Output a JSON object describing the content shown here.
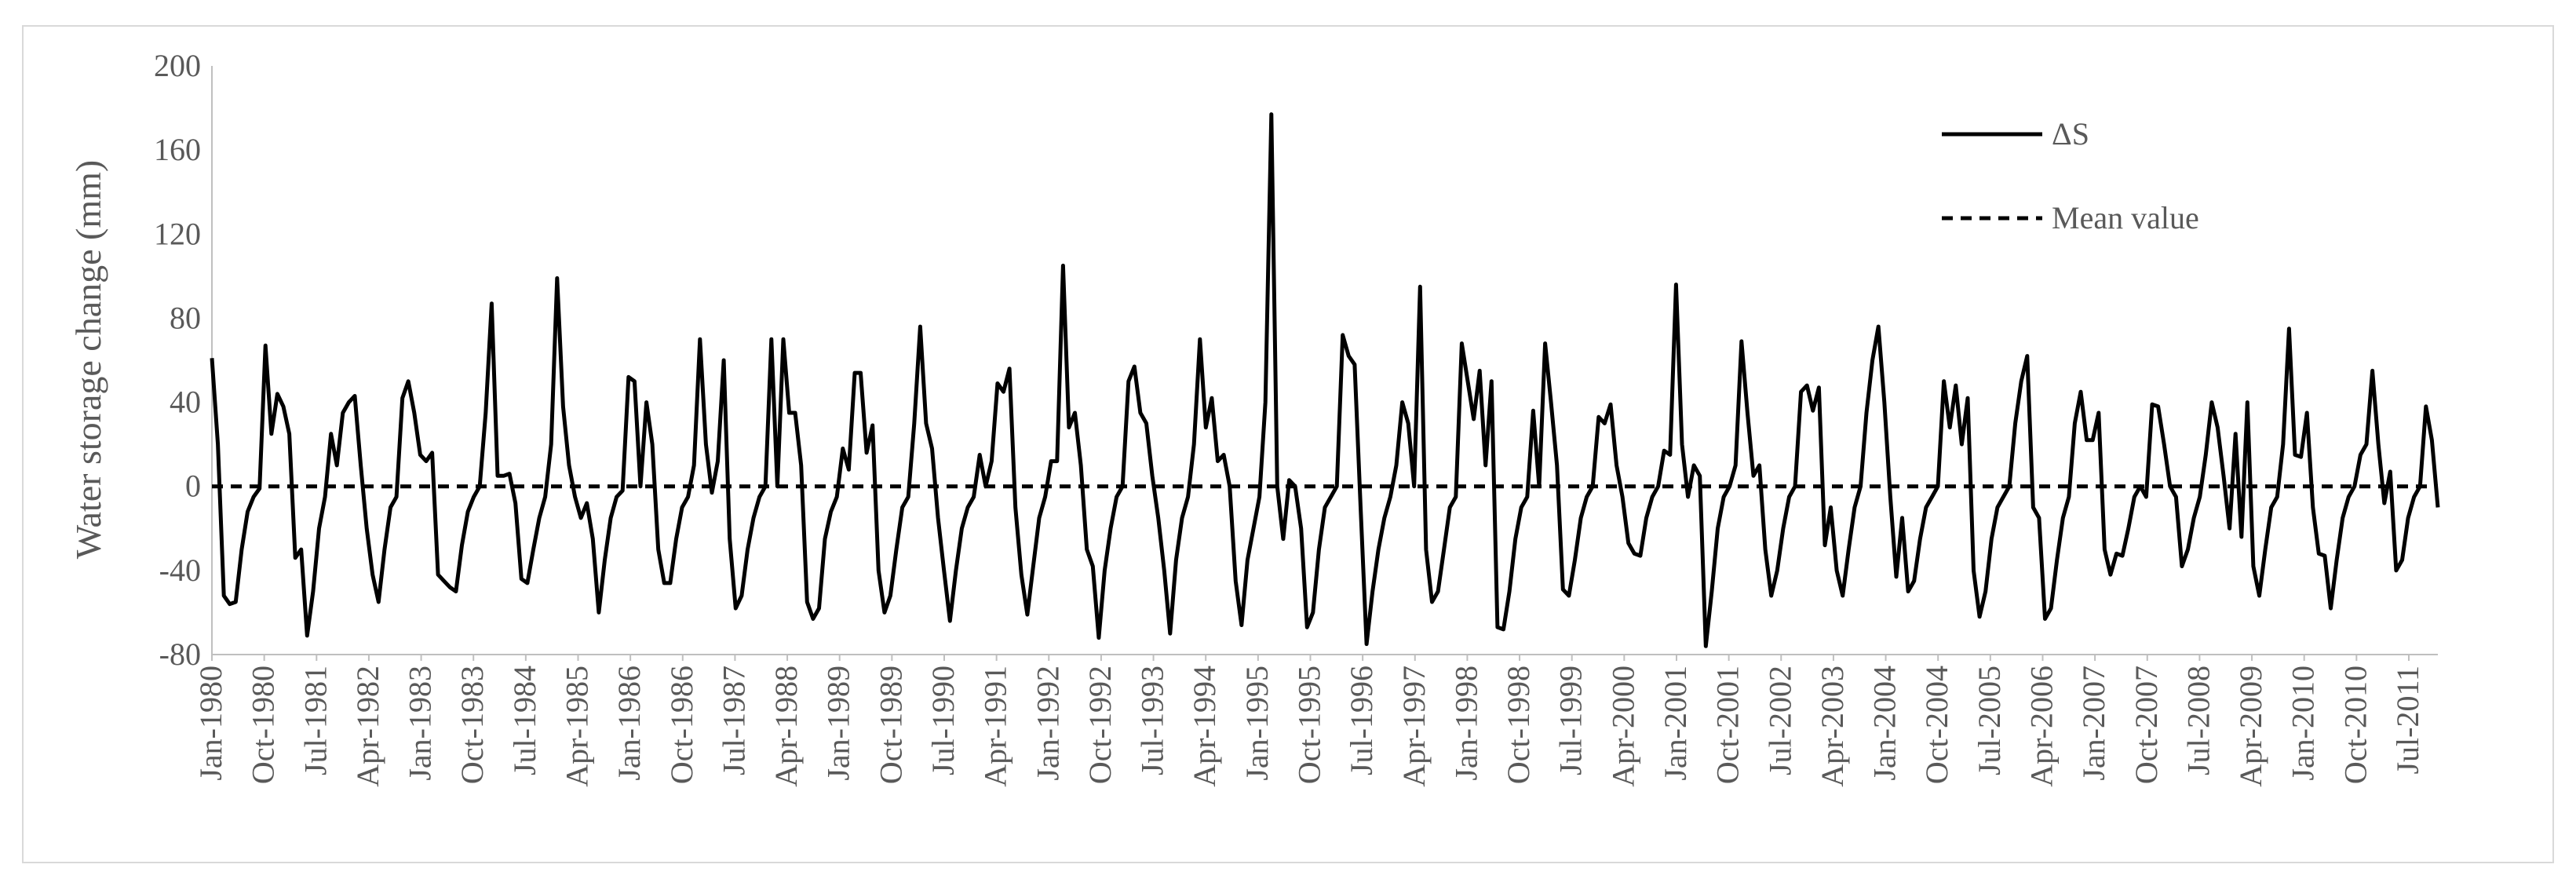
{
  "chart_data": {
    "type": "line",
    "ylabel": "Water storage change (mm)",
    "ylim": [
      -80,
      200
    ],
    "yticks": [
      -80,
      -40,
      0,
      40,
      80,
      120,
      160,
      200
    ],
    "grid": false,
    "legend_position": "top-right",
    "x_start": "1980-01",
    "x_end": "2011-12",
    "x_tick_labels": [
      "Jan-1980",
      "Oct-1980",
      "Jul-1981",
      "Apr-1982",
      "Jan-1983",
      "Oct-1983",
      "Jul-1984",
      "Apr-1985",
      "Jan-1986",
      "Oct-1986",
      "Jul-1987",
      "Apr-1988",
      "Jan-1989",
      "Oct-1989",
      "Jul-1990",
      "Apr-1991",
      "Jan-1992",
      "Oct-1992",
      "Jul-1993",
      "Apr-1994",
      "Jan-1995",
      "Oct-1995",
      "Jul-1996",
      "Apr-1997",
      "Jan-1998",
      "Oct-1998",
      "Jul-1999",
      "Apr-2000",
      "Jan-2001",
      "Oct-2001",
      "Jul-2002",
      "Apr-2003",
      "Jan-2004",
      "Oct-2004",
      "Jul-2005",
      "Apr-2006",
      "Jan-2007",
      "Oct-2007",
      "Jul-2008",
      "Apr-2009",
      "Jan-2010",
      "Oct-2010",
      "Jul-2011"
    ],
    "series": [
      {
        "name": "ΔS",
        "style": "solid",
        "color": "#000000",
        "values": [
          61,
          20,
          -52,
          -56,
          -55,
          -30,
          -12,
          -5,
          -1,
          67,
          25,
          44,
          38,
          25,
          -34,
          -30,
          -71,
          -50,
          -20,
          -5,
          25,
          10,
          35,
          40,
          43,
          10,
          -20,
          -42,
          -55,
          -30,
          -10,
          -5,
          42,
          50,
          35,
          15,
          12,
          16,
          -42,
          -45,
          -48,
          -50,
          -28,
          -12,
          -5,
          0,
          35,
          87,
          5,
          5,
          6,
          -8,
          -44,
          -46,
          -30,
          -15,
          -5,
          20,
          99,
          38,
          10,
          -5,
          -15,
          -8,
          -25,
          -60,
          -35,
          -15,
          -5,
          -2,
          52,
          50,
          0,
          40,
          20,
          -30,
          -46,
          -46,
          -25,
          -10,
          -5,
          10,
          70,
          20,
          -3,
          12,
          60,
          -25,
          -58,
          -52,
          -30,
          -15,
          -5,
          0,
          70,
          0,
          70,
          35,
          35,
          10,
          -55,
          -63,
          -58,
          -25,
          -12,
          -5,
          18,
          8,
          54,
          54,
          16,
          29,
          -40,
          -60,
          -52,
          -30,
          -10,
          -5,
          30,
          76,
          30,
          18,
          -15,
          -40,
          -64,
          -40,
          -20,
          -10,
          -5,
          15,
          0,
          12,
          49,
          45,
          56,
          -10,
          -42,
          -61,
          -38,
          -15,
          -5,
          12,
          12,
          105,
          28,
          35,
          10,
          -30,
          -38,
          -72,
          -40,
          -20,
          -5,
          0,
          50,
          57,
          35,
          30,
          5,
          -15,
          -40,
          -70,
          -35,
          -15,
          -5,
          20,
          70,
          28,
          42,
          12,
          15,
          0,
          -45,
          -66,
          -35,
          -20,
          -5,
          40,
          177,
          0,
          -25,
          3,
          0,
          -20,
          -67,
          -60,
          -30,
          -10,
          -5,
          0,
          72,
          62,
          58,
          -10,
          -75,
          -50,
          -30,
          -15,
          -5,
          10,
          40,
          30,
          0,
          95,
          -30,
          -55,
          -50,
          -30,
          -10,
          -5,
          68,
          50,
          32,
          55,
          10,
          50,
          -67,
          -68,
          -50,
          -25,
          -10,
          -5,
          36,
          0,
          68,
          40,
          10,
          -49,
          -52,
          -35,
          -15,
          -5,
          0,
          33,
          30,
          39,
          10,
          -5,
          -27,
          -32,
          -33,
          -15,
          -5,
          0,
          17,
          15,
          96,
          20,
          -5,
          10,
          5,
          -76,
          -50,
          -20,
          -5,
          0,
          10,
          69,
          35,
          5,
          10,
          -30,
          -52,
          -40,
          -20,
          -5,
          0,
          45,
          48,
          36,
          47,
          -28,
          -10,
          -40,
          -52,
          -30,
          -10,
          0,
          35,
          60,
          76,
          40,
          -5,
          -43,
          -15,
          -50,
          -45,
          -25,
          -10,
          -5,
          0,
          50,
          28,
          48,
          20,
          42,
          -40,
          -62,
          -50,
          -25,
          -10,
          -5,
          0,
          30,
          50,
          62,
          -10,
          -15,
          -63,
          -58,
          -35,
          -15,
          -5,
          30,
          45,
          22,
          22,
          35,
          -30,
          -42,
          -32,
          -33,
          -20,
          -5,
          0,
          -5,
          39,
          38,
          20,
          0,
          -5,
          -38,
          -30,
          -15,
          -5,
          15,
          40,
          28,
          5,
          -20,
          25,
          -24,
          40,
          -38,
          -52,
          -30,
          -10,
          -5,
          20,
          75,
          15,
          14,
          35,
          -10,
          -32,
          -33,
          -58,
          -35,
          -15,
          -5,
          0,
          15,
          20,
          55,
          20,
          -8,
          7,
          -40,
          -35,
          -15,
          -5,
          0,
          38,
          22,
          -10
        ]
      },
      {
        "name": "Mean value",
        "style": "dashed",
        "color": "#000000",
        "values": [
          0
        ]
      }
    ]
  }
}
